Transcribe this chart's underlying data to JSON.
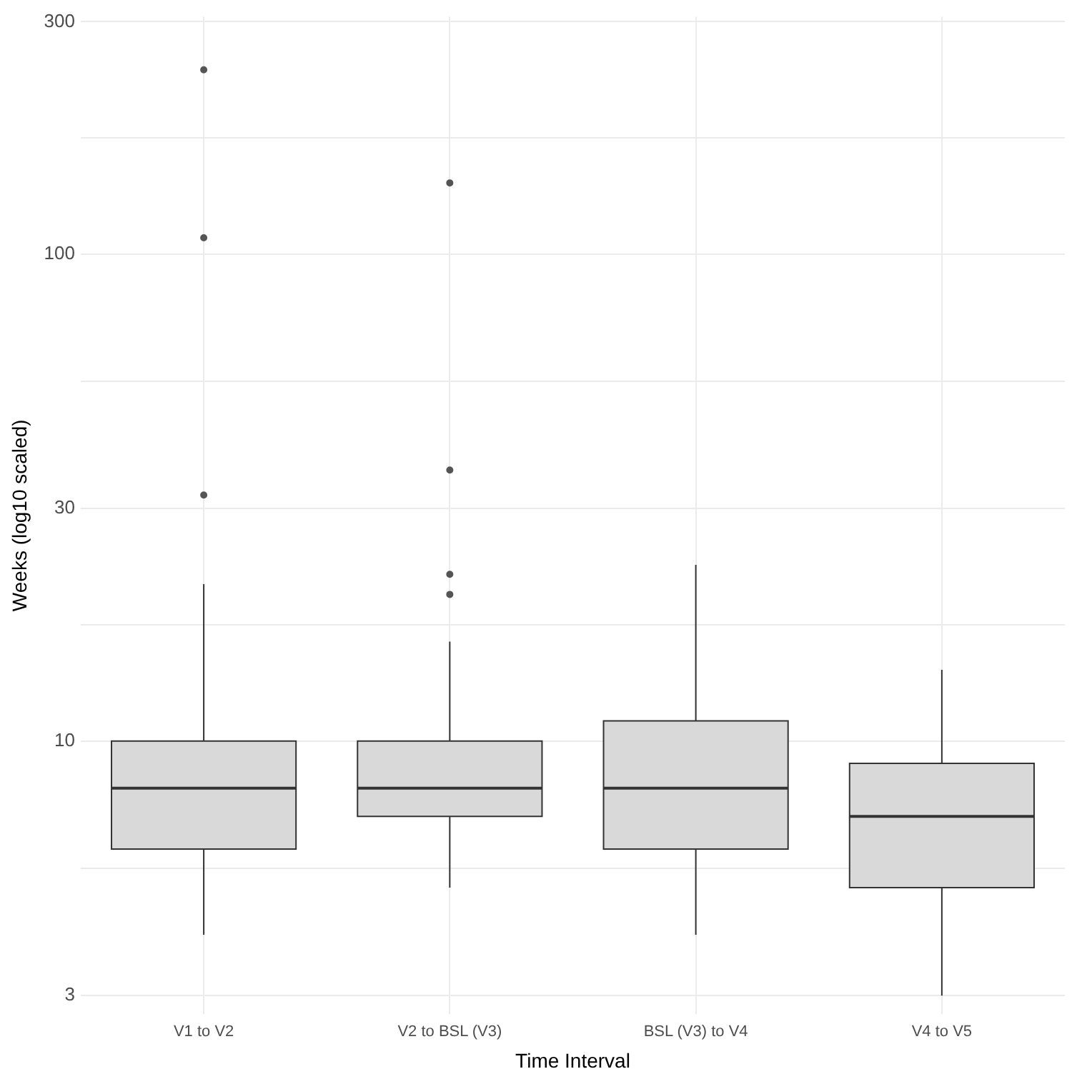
{
  "chart_data": {
    "type": "box",
    "xlabel": "Time Interval",
    "ylabel": "Weeks (log10 scaled)",
    "categories": [
      "V1 to V2",
      "V2 to BSL (V3)",
      "BSL (V3) to V4",
      "V4 to V5"
    ],
    "boxes": [
      {
        "low": 4,
        "q1": 6,
        "median": 8,
        "q3": 10,
        "high": 21,
        "outliers": [
          239,
          108,
          32
        ]
      },
      {
        "low": 5,
        "q1": 7,
        "median": 8,
        "q3": 10,
        "high": 16,
        "outliers": [
          140,
          36,
          22,
          20
        ]
      },
      {
        "low": 4,
        "q1": 6,
        "median": 8,
        "q3": 11,
        "high": 23
      },
      {
        "low": 3,
        "q1": 5,
        "median": 7,
        "q3": 9,
        "high": 14
      }
    ],
    "color": "#d9d9d9",
    "log": true,
    "ylim": [
      2.75,
      307
    ],
    "yticks": [
      3,
      {
        "value": 5.48,
        "label": null
      },
      10,
      {
        "value": 17.3,
        "label": null
      },
      30,
      {
        "value": 54.8,
        "label": null
      },
      100,
      {
        "value": 173,
        "label": null
      },
      300
    ],
    "grid": true,
    "legend": false
  }
}
